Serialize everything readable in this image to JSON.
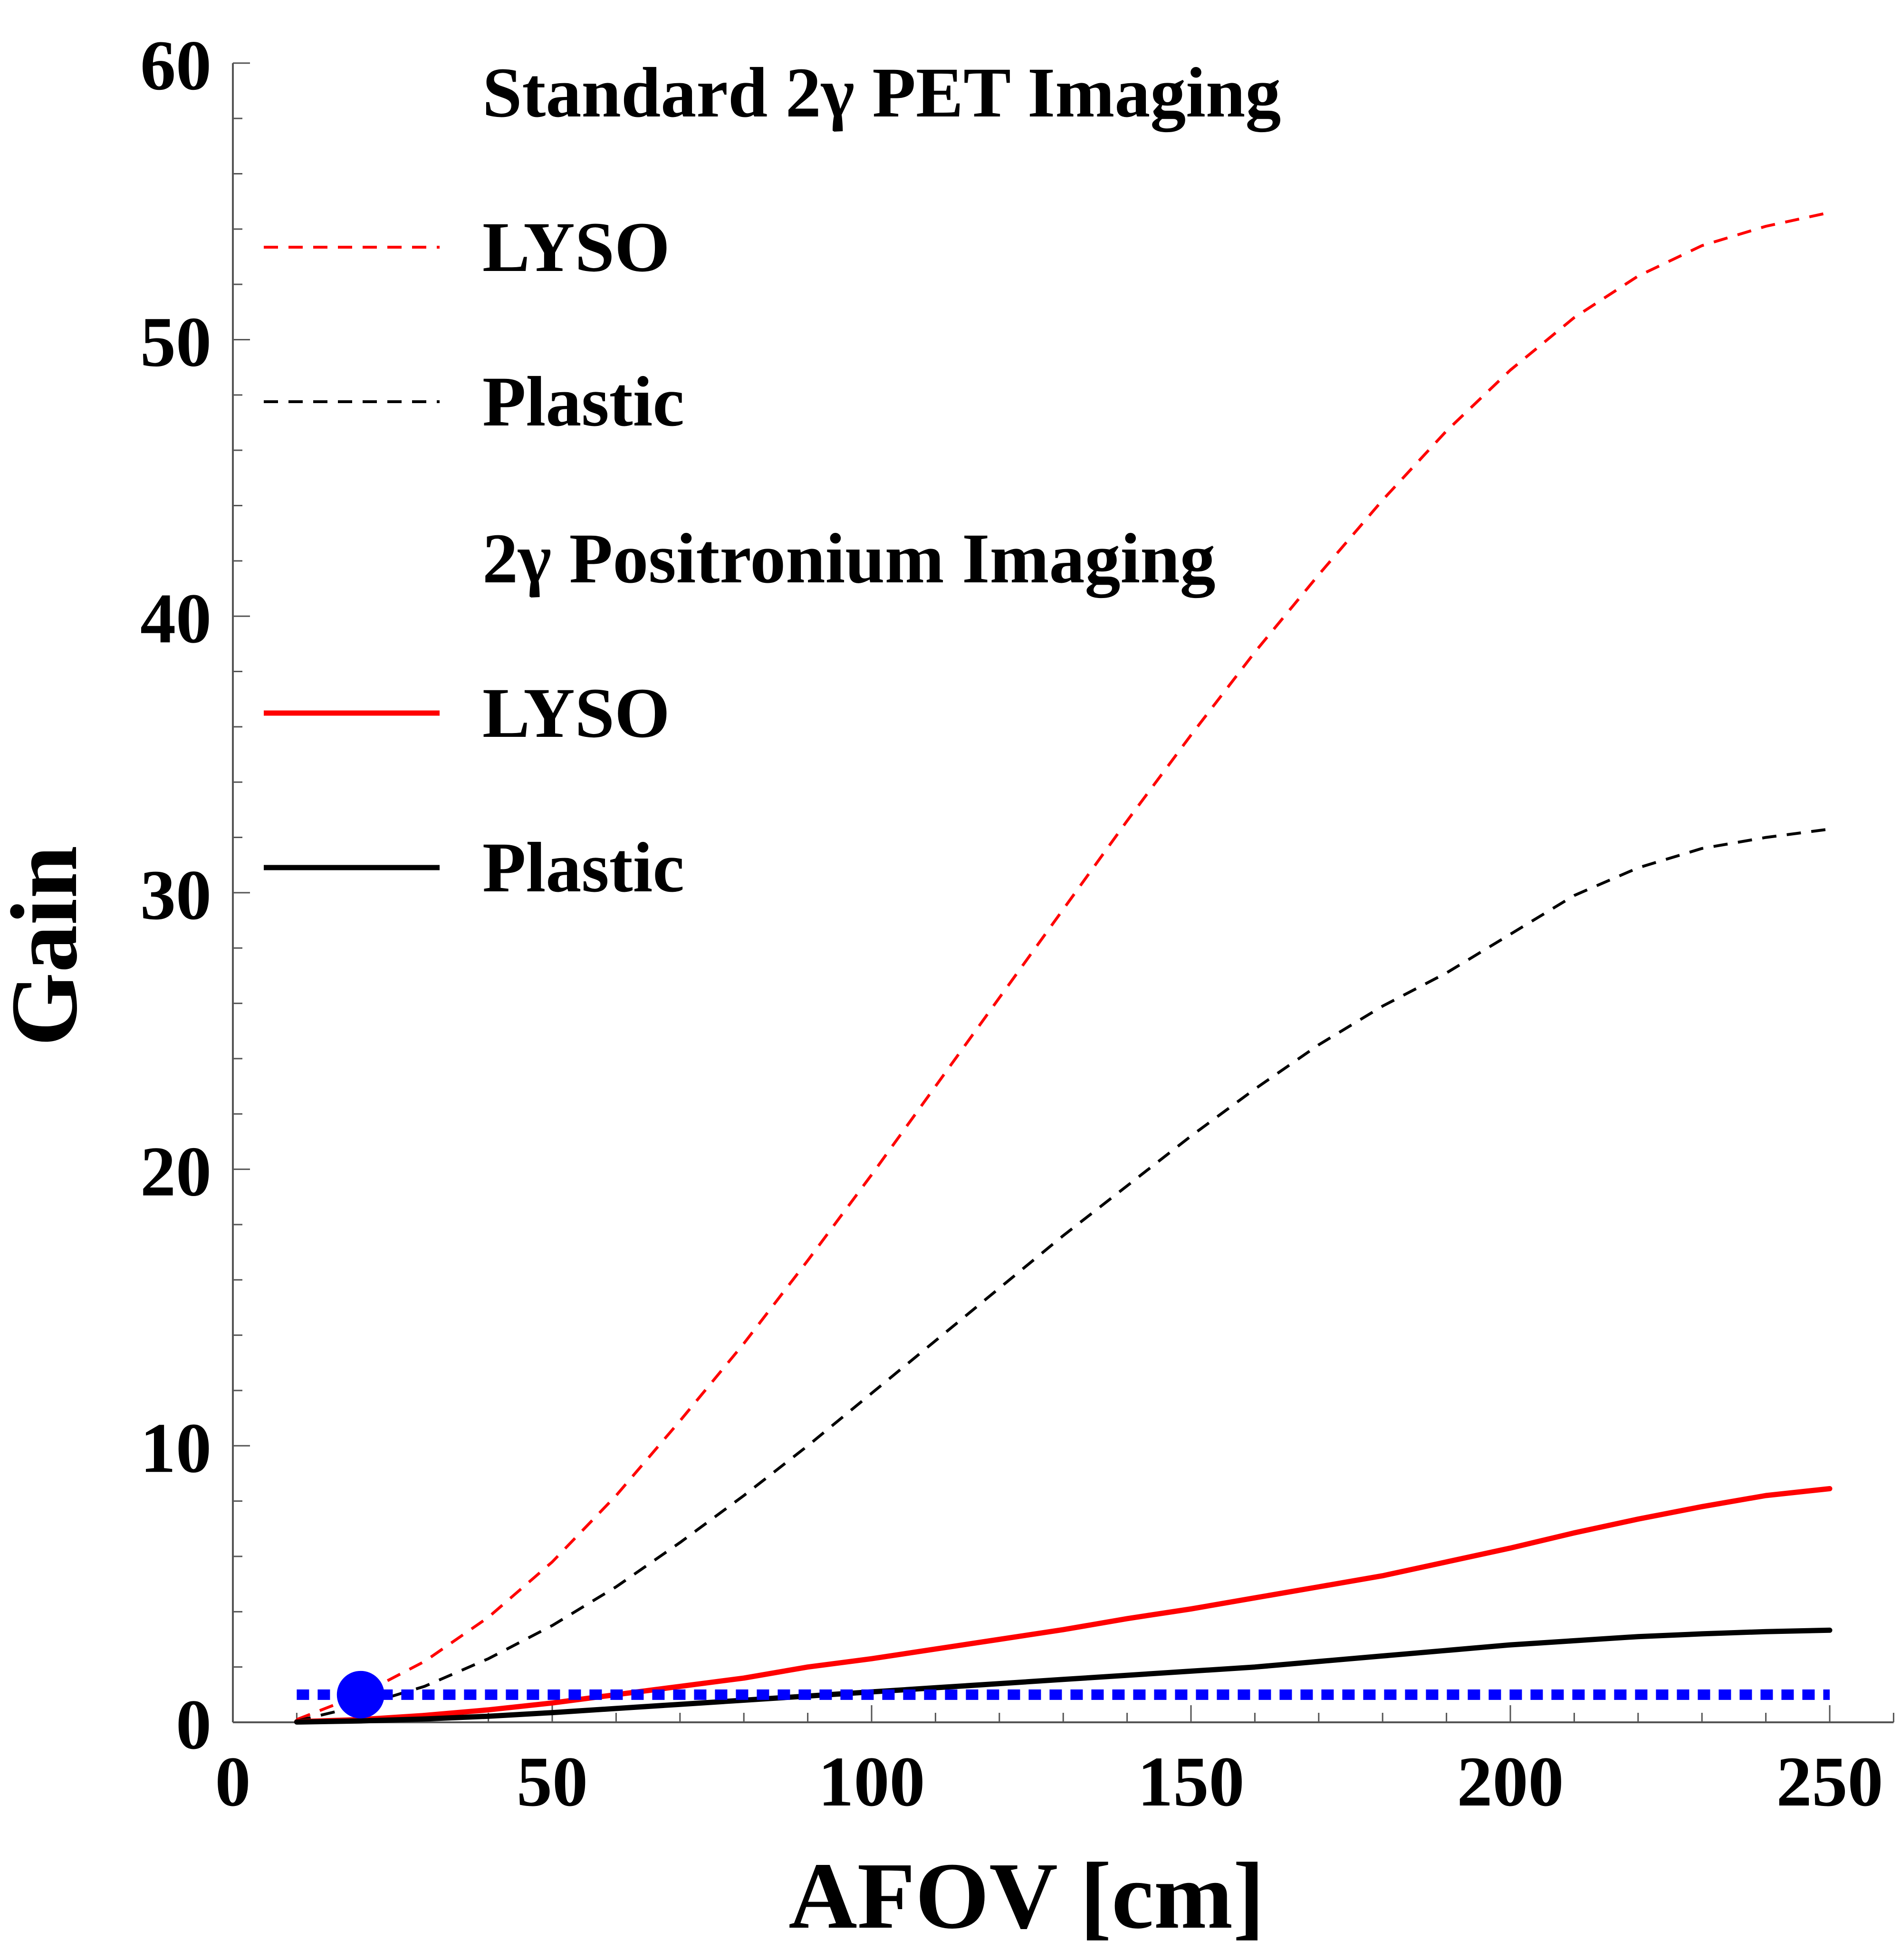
{
  "chart_data": {
    "type": "line",
    "title": "",
    "xlabel": "AFOV [cm]",
    "ylabel": "Gain",
    "xlim": [
      0,
      260
    ],
    "ylim": [
      0,
      60
    ],
    "x_ticks": [
      0,
      50,
      100,
      150,
      200,
      250
    ],
    "y_ticks": [
      0,
      10,
      20,
      30,
      40,
      50,
      60
    ],
    "grid": false,
    "legend": {
      "position": "top-left",
      "groups": [
        {
          "heading": "Standard 2γ PET Imaging",
          "entries": [
            "LYSO",
            "Plastic"
          ]
        },
        {
          "heading": "2γ Positronium Imaging",
          "entries": [
            "LYSO",
            "Plastic"
          ]
        }
      ]
    },
    "x": [
      10,
      20,
      30,
      40,
      50,
      60,
      70,
      80,
      90,
      100,
      110,
      120,
      130,
      140,
      150,
      160,
      170,
      180,
      190,
      200,
      210,
      220,
      230,
      240,
      250
    ],
    "series": [
      {
        "name": "LYSO",
        "group": "Standard 2γ PET Imaging",
        "color": "#ff0000",
        "style": "dashed",
        "values": [
          0.1,
          1.0,
          2.2,
          3.8,
          5.8,
          8.2,
          10.9,
          13.7,
          16.7,
          19.8,
          23.0,
          26.2,
          29.4,
          32.6,
          35.7,
          38.7,
          41.5,
          44.2,
          46.7,
          48.9,
          50.8,
          52.3,
          53.4,
          54.1,
          54.6
        ]
      },
      {
        "name": "Plastic",
        "group": "Standard 2γ PET Imaging",
        "color": "#000000",
        "style": "dashed",
        "values": [
          0.05,
          0.6,
          1.3,
          2.3,
          3.5,
          4.9,
          6.5,
          8.2,
          10.0,
          11.9,
          13.8,
          15.7,
          17.6,
          19.4,
          21.2,
          22.9,
          24.5,
          25.9,
          27.1,
          28.5,
          29.9,
          30.9,
          31.6,
          32.0,
          32.3
        ]
      },
      {
        "name": "LYSO",
        "group": "2γ Positronium Imaging",
        "color": "#ff0000",
        "style": "solid",
        "values": [
          0.02,
          0.1,
          0.25,
          0.45,
          0.7,
          1.0,
          1.3,
          1.6,
          2.0,
          2.3,
          2.65,
          3.0,
          3.35,
          3.75,
          4.1,
          4.5,
          4.9,
          5.3,
          5.8,
          6.3,
          6.85,
          7.35,
          7.8,
          8.2,
          8.45
        ]
      },
      {
        "name": "Plastic",
        "group": "2γ Positronium Imaging",
        "color": "#000000",
        "style": "solid",
        "values": [
          0.01,
          0.05,
          0.12,
          0.22,
          0.35,
          0.5,
          0.65,
          0.8,
          0.95,
          1.1,
          1.25,
          1.4,
          1.55,
          1.7,
          1.85,
          2.0,
          2.2,
          2.4,
          2.6,
          2.8,
          2.95,
          3.1,
          3.2,
          3.28,
          3.33
        ]
      }
    ],
    "reference_line": {
      "y": 1,
      "x_range": [
        10,
        250
      ],
      "color": "#0000ff",
      "style": "dotted"
    },
    "marker": {
      "x": 20,
      "y": 1,
      "color": "#0000ff"
    }
  }
}
